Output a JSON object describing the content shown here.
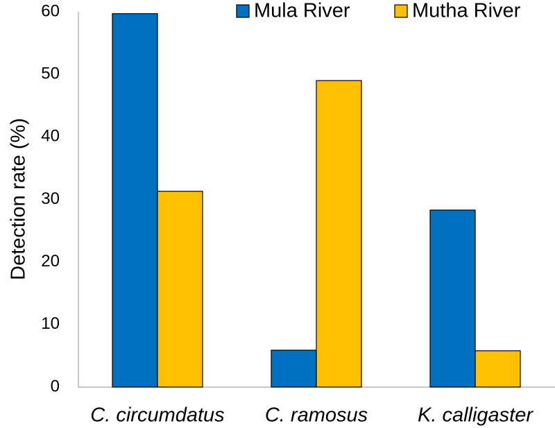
{
  "chart_data": {
    "type": "bar",
    "categories": [
      "C. circumdatus",
      "C. ramosus",
      "K. calligaster"
    ],
    "series": [
      {
        "name": "Mula River",
        "color": "#0070C0",
        "values": [
          59.7,
          5.9,
          28.3
        ]
      },
      {
        "name": "Mutha River",
        "color": "#FFC000",
        "values": [
          31.3,
          49.0,
          5.8
        ]
      }
    ],
    "title": "",
    "xlabel": "",
    "ylabel": "Detection rate (%)",
    "ylim": [
      0,
      60
    ],
    "yticks": [
      "0",
      "10",
      "20",
      "30",
      "40",
      "50",
      "60"
    ],
    "grid": false,
    "legend_position": "top-right"
  }
}
